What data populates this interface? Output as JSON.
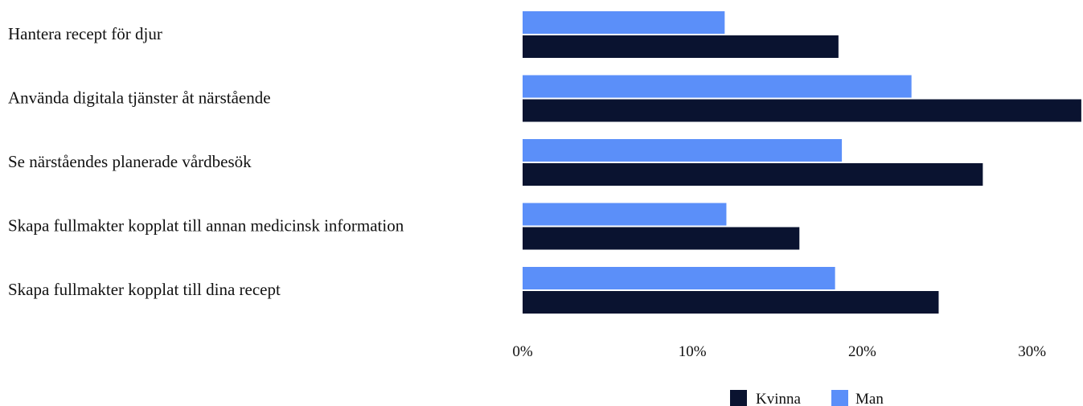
{
  "chart_data": {
    "type": "bar",
    "orientation": "horizontal",
    "categories": [
      "Hantera recept för djur",
      "Använda digitala tjänster åt närstående",
      "Se närståendes planerade vårdbesök",
      "Skapa fullmakter kopplat till annan medicinsk information",
      "Skapa fullmakter kopplat till dina recept"
    ],
    "series": [
      {
        "name": "Man",
        "color": "#5b8ff9",
        "values": [
          11.9,
          22.9,
          18.8,
          12.0,
          18.4
        ]
      },
      {
        "name": "Kvinna",
        "color": "#0a1330",
        "values": [
          18.6,
          32.9,
          27.1,
          16.3,
          24.5
        ]
      }
    ],
    "xlim": [
      0,
      33
    ],
    "xticks": [
      0,
      10,
      20,
      30
    ],
    "tick_labels": [
      "0%",
      "10%",
      "20%",
      "30%"
    ],
    "legend": {
      "placement": "bottom-right",
      "entries": [
        {
          "label": "Kvinna",
          "color": "#0a1330"
        },
        {
          "label": "Man",
          "color": "#5b8ff9"
        }
      ]
    },
    "grid": false,
    "title": "",
    "xlabel": "",
    "ylabel": ""
  }
}
